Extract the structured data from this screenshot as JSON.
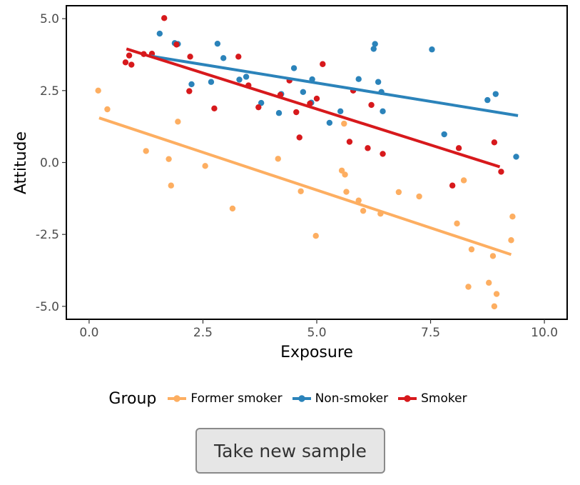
{
  "button": {
    "label": "Take new sample"
  },
  "chart_data": {
    "type": "scatter",
    "title": "",
    "xlabel": "Exposure",
    "ylabel": "Attitude",
    "xlim": [
      -0.5,
      10.5
    ],
    "ylim": [
      -5.45,
      5.45
    ],
    "x_ticks": [
      0.0,
      2.5,
      5.0,
      7.5,
      10.0
    ],
    "x_tick_labels": [
      "0.0",
      "2.5",
      "5.0",
      "7.5",
      "10.0"
    ],
    "y_ticks": [
      5.0,
      2.5,
      0.0,
      -2.5,
      -5.0
    ],
    "y_tick_labels": [
      "5.0",
      "2.5",
      "0.0",
      "-2.5",
      "-5.0"
    ],
    "grid": false,
    "legend": {
      "title": "Group",
      "position": "bottom"
    },
    "series": [
      {
        "name": "Former smoker",
        "color": "#fdae61",
        "points": [
          [
            0.2,
            2.5
          ],
          [
            0.4,
            1.85
          ],
          [
            1.25,
            0.4
          ],
          [
            1.75,
            0.12
          ],
          [
            1.8,
            -0.8
          ],
          [
            1.95,
            1.42
          ],
          [
            2.55,
            -0.12
          ],
          [
            3.15,
            -1.6
          ],
          [
            4.15,
            0.13
          ],
          [
            4.65,
            -1.0
          ],
          [
            4.98,
            -2.55
          ],
          [
            5.55,
            -0.28
          ],
          [
            5.6,
            1.35
          ],
          [
            5.62,
            -0.42
          ],
          [
            5.65,
            -1.02
          ],
          [
            5.92,
            -1.32
          ],
          [
            6.02,
            -1.68
          ],
          [
            6.4,
            -1.78
          ],
          [
            6.8,
            -1.03
          ],
          [
            7.25,
            -1.18
          ],
          [
            8.08,
            -2.12
          ],
          [
            8.23,
            -0.62
          ],
          [
            8.33,
            -4.32
          ],
          [
            8.4,
            -3.02
          ],
          [
            8.78,
            -4.18
          ],
          [
            8.87,
            -3.25
          ],
          [
            8.9,
            -5.0
          ],
          [
            8.95,
            -4.57
          ],
          [
            9.27,
            -2.7
          ],
          [
            9.3,
            -1.88
          ]
        ],
        "fit": [
          [
            0.22,
            1.55
          ],
          [
            9.27,
            -3.2
          ]
        ]
      },
      {
        "name": "Non-smoker",
        "color": "#2b83ba",
        "points": [
          [
            1.55,
            4.48
          ],
          [
            1.88,
            4.15
          ],
          [
            1.95,
            4.12
          ],
          [
            2.25,
            2.72
          ],
          [
            2.68,
            2.8
          ],
          [
            2.82,
            4.13
          ],
          [
            2.95,
            3.63
          ],
          [
            3.3,
            2.88
          ],
          [
            3.45,
            2.98
          ],
          [
            3.78,
            2.07
          ],
          [
            4.17,
            1.72
          ],
          [
            4.22,
            2.38
          ],
          [
            4.5,
            3.28
          ],
          [
            4.7,
            2.45
          ],
          [
            4.88,
            2.08
          ],
          [
            4.9,
            2.89
          ],
          [
            5.28,
            1.38
          ],
          [
            5.52,
            1.78
          ],
          [
            5.92,
            2.9
          ],
          [
            6.25,
            3.95
          ],
          [
            6.28,
            4.12
          ],
          [
            6.35,
            2.8
          ],
          [
            6.42,
            2.45
          ],
          [
            6.45,
            1.78
          ],
          [
            7.53,
            3.93
          ],
          [
            7.8,
            0.98
          ],
          [
            8.75,
            2.17
          ],
          [
            8.93,
            2.38
          ],
          [
            9.38,
            0.2
          ]
        ],
        "fit": [
          [
            1.35,
            3.7
          ],
          [
            9.42,
            1.63
          ]
        ]
      },
      {
        "name": "Smoker",
        "color": "#d7191c",
        "points": [
          [
            0.8,
            3.48
          ],
          [
            0.88,
            3.72
          ],
          [
            0.93,
            3.4
          ],
          [
            1.2,
            3.77
          ],
          [
            1.38,
            3.78
          ],
          [
            1.65,
            5.02
          ],
          [
            1.92,
            4.1
          ],
          [
            2.2,
            2.48
          ],
          [
            2.22,
            3.68
          ],
          [
            2.75,
            1.88
          ],
          [
            3.28,
            3.68
          ],
          [
            3.5,
            2.68
          ],
          [
            3.72,
            1.92
          ],
          [
            4.2,
            2.35
          ],
          [
            4.4,
            2.85
          ],
          [
            4.55,
            1.75
          ],
          [
            4.62,
            0.87
          ],
          [
            4.85,
            2.05
          ],
          [
            5.0,
            2.22
          ],
          [
            5.13,
            3.42
          ],
          [
            5.72,
            0.72
          ],
          [
            5.8,
            2.5
          ],
          [
            6.12,
            0.5
          ],
          [
            6.2,
            2.0
          ],
          [
            6.45,
            0.3
          ],
          [
            7.98,
            -0.8
          ],
          [
            8.12,
            0.5
          ],
          [
            8.9,
            0.7
          ],
          [
            9.05,
            -0.32
          ]
        ],
        "fit": [
          [
            0.82,
            3.95
          ],
          [
            9.02,
            -0.15
          ]
        ]
      }
    ]
  }
}
